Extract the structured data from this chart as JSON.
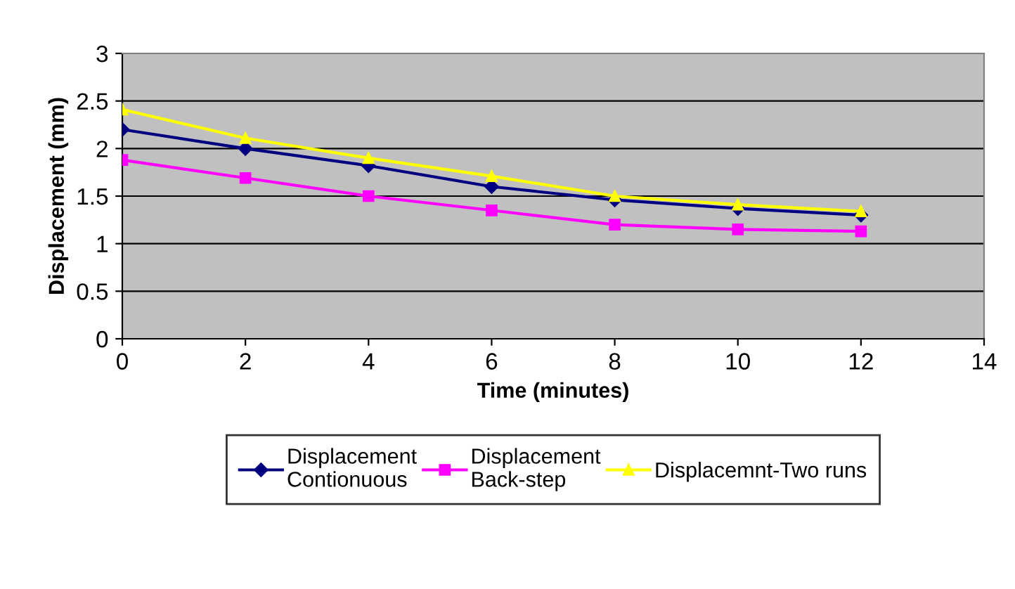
{
  "chart_data": {
    "type": "line",
    "xlabel": "Time (minutes)",
    "ylabel": "Displacement (mm)",
    "x": [
      0,
      2,
      4,
      6,
      8,
      10,
      12
    ],
    "series": [
      {
        "name": "Displacement\nContionuous",
        "color": "#000080",
        "marker": "diamond",
        "values": [
          2.2,
          2.0,
          1.82,
          1.6,
          1.46,
          1.37,
          1.3
        ]
      },
      {
        "name": "Displacement\nBack-step",
        "color": "#ff00ff",
        "marker": "square",
        "values": [
          1.88,
          1.69,
          1.5,
          1.35,
          1.2,
          1.15,
          1.13
        ]
      },
      {
        "name": "Displacemnt-Two runs",
        "color": "#ffff00",
        "marker": "triangle",
        "values": [
          2.41,
          2.11,
          1.9,
          1.71,
          1.5,
          1.41,
          1.34
        ]
      }
    ],
    "xlim": [
      0,
      14
    ],
    "xticks": [
      0,
      2,
      4,
      6,
      8,
      10,
      12,
      14
    ],
    "ylim": [
      0,
      3
    ],
    "yticks": [
      0,
      0.5,
      1,
      1.5,
      2,
      2.5,
      3
    ],
    "grid": "y",
    "legend": "bottom",
    "line_style": "solid"
  }
}
